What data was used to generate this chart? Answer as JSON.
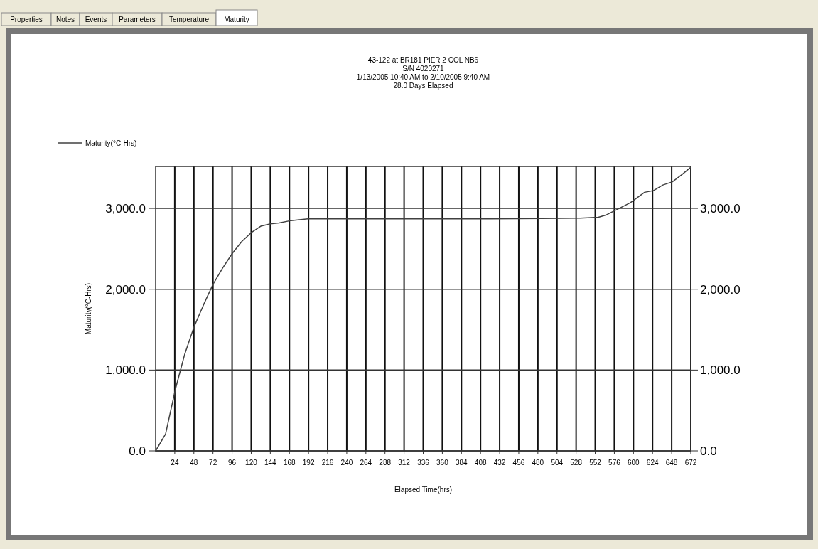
{
  "chart_data": {
    "type": "line",
    "title": "43-122 at BR181 PIER 2 COL NB6",
    "subtitle": "S/N 4020271\n1/13/2005 10:40 AM to 2/10/2005 9:40 AM\n28.0 Days Elapsed",
    "xlabel": "Elapsed Time(hrs)",
    "ylabel": "Maturity(°C-Hrs)",
    "annotations": [
      "Properties",
      "Notes",
      "Events",
      "Parameters",
      "Temperature",
      "Maturity"
    ],
    "series": [
      {
        "name": "Maturity(°C-Hrs)",
        "color": "#404040",
        "x": [
          0,
          12.5,
          25,
          36.6,
          48,
          60.7,
          72,
          84,
          96,
          108,
          120,
          132,
          144,
          155,
          170,
          191,
          300,
          420,
          533,
          556,
          566,
          578,
          596,
          614,
          625,
          637,
          649,
          661,
          672
        ],
        "values": [
          0,
          210,
          770,
          1200,
          1530,
          1820,
          2060,
          2260,
          2440,
          2590,
          2700,
          2780,
          2810,
          2820,
          2850,
          2870,
          2870,
          2870,
          2880,
          2890,
          2920,
          2980,
          3070,
          3200,
          3220,
          3290,
          3330,
          3420,
          3510
        ]
      }
    ],
    "xlim": [
      0,
      672
    ],
    "xticks": [
      24,
      48,
      72,
      96,
      120,
      144,
      168,
      192,
      216,
      240,
      264,
      288,
      312,
      336,
      360,
      384,
      408,
      432,
      456,
      480,
      504,
      528,
      552,
      576,
      600,
      624,
      648,
      672
    ],
    "ylim": [
      0,
      3520
    ],
    "yticks": [
      {
        "value": 0,
        "label": "0.0"
      },
      {
        "value": 1000,
        "label": "1,000.0"
      },
      {
        "value": 2000,
        "label": "2,000.0"
      },
      {
        "value": 3000,
        "label": "3,000.0"
      }
    ],
    "y2lim": [
      0,
      3520
    ],
    "y2ticks": [
      {
        "value": 0,
        "label": "0.0"
      },
      {
        "value": 1000,
        "label": "1,000.0"
      },
      {
        "value": 2000,
        "label": "2,000.0"
      },
      {
        "value": 3000,
        "label": "3,000.0"
      }
    ],
    "grid": true,
    "legend": "top left",
    "marker": "none",
    "line_style": "solid"
  }
}
